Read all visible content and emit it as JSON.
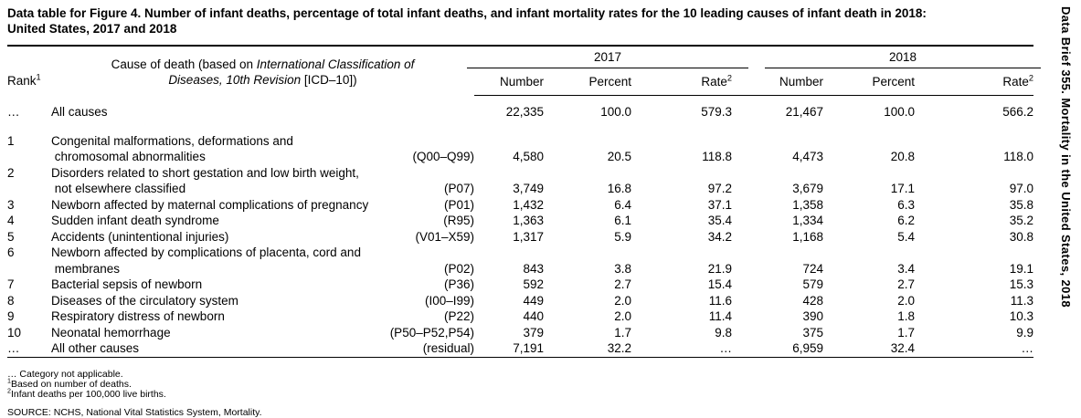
{
  "title": {
    "line1": "Data table for Figure 4. Number of infant deaths, percentage of total infant deaths, and infant mortality rates for the 10 leading causes of infant death in 2018:",
    "line2": "United States, 2017 and 2018"
  },
  "sidebar_text": "Data Brief 355. Mortality in the United States, 2018",
  "header": {
    "rank_label": "Rank",
    "rank_sup": "1",
    "cause_l1_normal": "Cause of death (based on ",
    "cause_l1_italic": "International Classification of",
    "cause_l2_italic": "Diseases, 10th Revision",
    "cause_l2_normal": " [ICD–10])",
    "year_2017": "2017",
    "year_2018": "2018",
    "number_label": "Number",
    "percent_label": "Percent",
    "rate_label": "Rate",
    "rate_sup": "2"
  },
  "rows": [
    {
      "rank": "…",
      "cause_lines": [
        "All causes"
      ],
      "code": "",
      "n2017": "22,335",
      "p2017": "100.0",
      "r2017": "579.3",
      "n2018": "21,467",
      "p2018": "100.0",
      "r2018": "566.2"
    },
    {
      "rank": "1",
      "cause_lines": [
        "Congenital malformations, deformations and",
        "chromosomal abnormalities"
      ],
      "code": "(Q00–Q99)",
      "n2017": "4,580",
      "p2017": "20.5",
      "r2017": "118.8",
      "n2018": "4,473",
      "p2018": "20.8",
      "r2018": "118.0"
    },
    {
      "rank": "2",
      "cause_lines": [
        "Disorders related to short gestation and low birth weight,",
        "not elsewhere classified"
      ],
      "code": "(P07)",
      "n2017": "3,749",
      "p2017": "16.8",
      "r2017": "97.2",
      "n2018": "3,679",
      "p2018": "17.1",
      "r2018": "97.0"
    },
    {
      "rank": "3",
      "cause_lines": [
        "Newborn affected by maternal complications of pregnancy"
      ],
      "code": "(P01)",
      "n2017": "1,432",
      "p2017": "6.4",
      "r2017": "37.1",
      "n2018": "1,358",
      "p2018": "6.3",
      "r2018": "35.8"
    },
    {
      "rank": "4",
      "cause_lines": [
        "Sudden infant death syndrome"
      ],
      "code": "(R95)",
      "n2017": "1,363",
      "p2017": "6.1",
      "r2017": "35.4",
      "n2018": "1,334",
      "p2018": "6.2",
      "r2018": "35.2"
    },
    {
      "rank": "5",
      "cause_lines": [
        "Accidents (unintentional injuries)"
      ],
      "code": "(V01–X59)",
      "n2017": "1,317",
      "p2017": "5.9",
      "r2017": "34.2",
      "n2018": "1,168",
      "p2018": "5.4",
      "r2018": "30.8"
    },
    {
      "rank": "6",
      "cause_lines": [
        "Newborn affected by complications of placenta, cord and",
        "membranes"
      ],
      "code": "(P02)",
      "n2017": "843",
      "p2017": "3.8",
      "r2017": "21.9",
      "n2018": "724",
      "p2018": "3.4",
      "r2018": "19.1"
    },
    {
      "rank": "7",
      "cause_lines": [
        "Bacterial sepsis of newborn"
      ],
      "code": "(P36)",
      "n2017": "592",
      "p2017": "2.7",
      "r2017": "15.4",
      "n2018": "579",
      "p2018": "2.7",
      "r2018": "15.3"
    },
    {
      "rank": "8",
      "cause_lines": [
        "Diseases of the circulatory system"
      ],
      "code": "(I00–I99)",
      "n2017": "449",
      "p2017": "2.0",
      "r2017": "11.6",
      "n2018": "428",
      "p2018": "2.0",
      "r2018": "11.3"
    },
    {
      "rank": "9",
      "cause_lines": [
        "Respiratory distress of newborn"
      ],
      "code": "(P22)",
      "n2017": "440",
      "p2017": "2.0",
      "r2017": "11.4",
      "n2018": "390",
      "p2018": "1.8",
      "r2018": "10.3"
    },
    {
      "rank": "10",
      "cause_lines": [
        "Neonatal hemorrhage"
      ],
      "code": "(P50–P52,P54)",
      "n2017": "379",
      "p2017": "1.7",
      "r2017": "9.8",
      "n2018": "375",
      "p2018": "1.7",
      "r2018": "9.9"
    },
    {
      "rank": "…",
      "cause_lines": [
        "All other causes"
      ],
      "code": "(residual)",
      "n2017": "7,191",
      "p2017": "32.2",
      "r2017": "…",
      "n2018": "6,959",
      "p2018": "32.4",
      "r2018": "…"
    }
  ],
  "footnotes": [
    {
      "sup": "",
      "text": "… Category not applicable."
    },
    {
      "sup": "1",
      "text": "Based on number of deaths."
    },
    {
      "sup": "2",
      "text": "Infant deaths per 100,000 live births."
    }
  ],
  "source": "SOURCE: NCHS, National Vital Statistics System, Mortality."
}
